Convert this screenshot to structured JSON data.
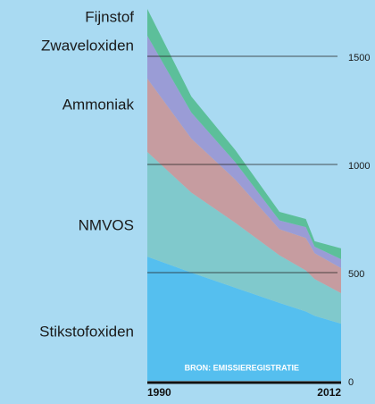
{
  "chart_data": {
    "type": "stacked-area",
    "x": [
      1990,
      1995,
      2000,
      2005,
      2008,
      2009,
      2012
    ],
    "xlim": [
      1990,
      2012
    ],
    "xticks": [
      1990,
      2012
    ],
    "ylim": [
      0,
      1750
    ],
    "yticks": [
      0,
      500,
      1000,
      1500
    ],
    "grid": true,
    "source": "BRON: EMISSIEREGISTRATIE",
    "series": [
      {
        "name": "Stikstofoxiden",
        "color": "#55bfef",
        "values": [
          574,
          500,
          430,
          360,
          320,
          300,
          264
        ]
      },
      {
        "name": "NMVOS",
        "color": "#80c9cc",
        "values": [
          484,
          370,
          300,
          220,
          190,
          170,
          141
        ]
      },
      {
        "name": "Ammoniak",
        "color": "#c69ca0",
        "values": [
          339,
          250,
          200,
          121,
          150,
          120,
          116
        ]
      },
      {
        "name": "Zwaveloxiden",
        "color": "#9a9cd6",
        "values": [
          198,
          120,
          80,
          40,
          50,
          30,
          41
        ]
      },
      {
        "name": "Fijnstof",
        "color": "#5cbf9a",
        "values": [
          124,
          74,
          56,
          40,
          38,
          25,
          50
        ]
      }
    ]
  }
}
